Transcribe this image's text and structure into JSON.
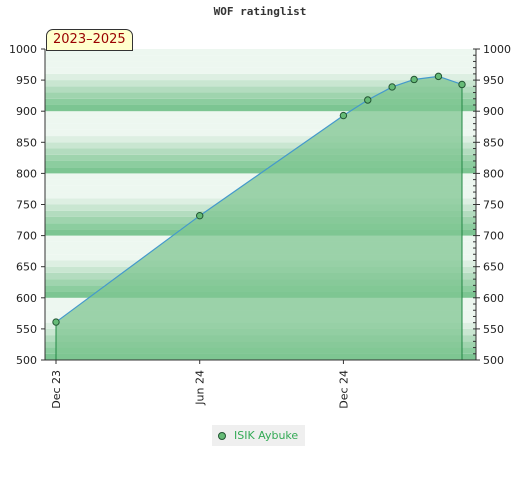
{
  "title": "WOF ratinglist",
  "badge": "2023–2025",
  "legend": {
    "label": "ISIK Aybuke"
  },
  "colors": {
    "line": "#4499cc",
    "fill": "#7fc592",
    "marker_fill": "#66bb77",
    "marker_stroke": "#225533",
    "legend_text": "#33aa55",
    "badge_text": "#990000"
  },
  "chart_data": {
    "type": "line",
    "title": "WOF ratinglist",
    "xlabel": "",
    "ylabel": "",
    "ylim": [
      500,
      1000
    ],
    "y_major_ticks": [
      500,
      550,
      600,
      650,
      700,
      750,
      800,
      850,
      900,
      950,
      1000
    ],
    "x_tick_labels": [
      {
        "date": "2023-12-01",
        "label": "Dec 23"
      },
      {
        "date": "2024-06-01",
        "label": "Jun 24"
      },
      {
        "date": "2024-12-01",
        "label": "Dec 24"
      }
    ],
    "x_end": "2025-05-01",
    "series": [
      {
        "name": "ISIK Aybuke",
        "points": [
          {
            "x": "2023-12-01",
            "y": 561
          },
          {
            "x": "2024-06-01",
            "y": 732
          },
          {
            "x": "2024-12-01",
            "y": 893
          },
          {
            "x": "2025-01-01",
            "y": 918
          },
          {
            "x": "2025-02-01",
            "y": 939
          },
          {
            "x": "2025-03-01",
            "y": 951
          },
          {
            "x": "2025-04-01",
            "y": 956
          },
          {
            "x": "2025-05-01",
            "y": 943
          }
        ]
      }
    ],
    "grid": true,
    "legend_position": "bottom"
  }
}
